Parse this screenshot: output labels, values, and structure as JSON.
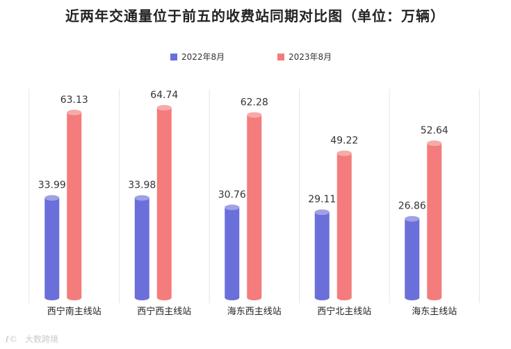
{
  "chart_data": {
    "type": "bar",
    "title": "近两年交通量位于前五的收费站同期对比图（单位：万辆）",
    "categories": [
      "西宁南主线站",
      "西宁西主线站",
      "海东西主线站",
      "西宁北主线站",
      "海东主线站"
    ],
    "series": [
      {
        "name": "2022年8月",
        "values": [
          33.99,
          33.98,
          30.76,
          29.11,
          26.86
        ],
        "color": "#6b6fd9"
      },
      {
        "name": "2023年8月",
        "values": [
          63.13,
          64.74,
          62.28,
          49.22,
          52.64
        ],
        "color": "#f47c7c"
      }
    ],
    "ylim": [
      0,
      75
    ],
    "grid": false,
    "legend_position": "top-center",
    "value_labels": [
      "33.99",
      "33.98",
      "30.76",
      "29.11",
      "26.86",
      "63.13",
      "64.74",
      "62.28",
      "49.22",
      "52.64"
    ]
  },
  "watermark": "大数跨境"
}
